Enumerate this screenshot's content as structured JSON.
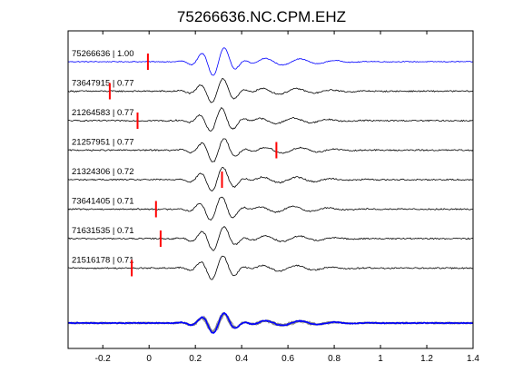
{
  "chart_data": {
    "type": "line",
    "title": "75266636.NC.CPM.EHZ",
    "xlabel": "",
    "ylabel": "",
    "xlim": [
      -0.35,
      1.4
    ],
    "x_ticks": [
      -0.2,
      0,
      0.2,
      0.4,
      0.6,
      0.8,
      1,
      1.2,
      1.4
    ],
    "x_tick_labels": [
      "-0.2",
      "0",
      "0.2",
      "0.4",
      "0.6",
      "0.8",
      "1",
      "1.2",
      "1.4"
    ],
    "grid": false,
    "series": [
      {
        "label": "75266636 | 1.00",
        "event_id": "75266636",
        "correlation": 1.0,
        "pick_time": -0.005,
        "color": "#0000ff"
      },
      {
        "label": "73647915 | 0.77",
        "event_id": "73647915",
        "correlation": 0.77,
        "pick_time": -0.17,
        "color": "#000000"
      },
      {
        "label": "21264583 | 0.77",
        "event_id": "21264583",
        "correlation": 0.77,
        "pick_time": -0.05,
        "color": "#000000"
      },
      {
        "label": "21257951 | 0.77",
        "event_id": "21257951",
        "correlation": 0.77,
        "pick_time": 0.55,
        "color": "#000000"
      },
      {
        "label": "21324306 | 0.72",
        "event_id": "21324306",
        "correlation": 0.72,
        "pick_time": 0.315,
        "color": "#000000"
      },
      {
        "label": "73641405 | 0.71",
        "event_id": "73641405",
        "correlation": 0.71,
        "pick_time": 0.03,
        "color": "#000000"
      },
      {
        "label": "71631535 | 0.71",
        "event_id": "71631535",
        "correlation": 0.71,
        "pick_time": 0.05,
        "color": "#000000"
      },
      {
        "label": "21516178 | 0.71",
        "event_id": "21516178",
        "correlation": 0.71,
        "pick_time": -0.075,
        "color": "#000000"
      }
    ],
    "stack": {
      "reference_color": "#0000ff",
      "trace_color": "#808080"
    },
    "pick_color": "#ff0000"
  }
}
